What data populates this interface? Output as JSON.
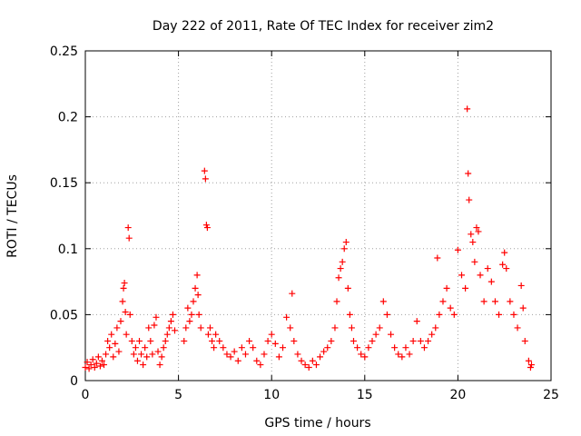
{
  "chart_data": {
    "type": "scatter",
    "title": "Day 222 of 2011, Rate Of TEC Index for receiver zim2",
    "xlabel": "GPS time / hours",
    "ylabel": "ROTI / TECUs",
    "xlim": [
      0,
      25
    ],
    "ylim": [
      0,
      0.25
    ],
    "xticks": [
      "0",
      "5",
      "10",
      "15",
      "20",
      "25"
    ],
    "yticks": [
      "0",
      "0.05",
      "0.1",
      "0.15",
      "0.2",
      "0.25"
    ],
    "grid": true,
    "marker": "+",
    "color": "#ff0000",
    "points": [
      [
        0.0,
        0.01
      ],
      [
        0.1,
        0.014
      ],
      [
        0.2,
        0.009
      ],
      [
        0.3,
        0.012
      ],
      [
        0.4,
        0.016
      ],
      [
        0.5,
        0.01
      ],
      [
        0.6,
        0.013
      ],
      [
        0.7,
        0.018
      ],
      [
        0.8,
        0.011
      ],
      [
        0.9,
        0.015
      ],
      [
        1.0,
        0.012
      ],
      [
        1.1,
        0.02
      ],
      [
        1.2,
        0.03
      ],
      [
        1.3,
        0.025
      ],
      [
        1.4,
        0.035
      ],
      [
        1.5,
        0.018
      ],
      [
        1.6,
        0.028
      ],
      [
        1.7,
        0.04
      ],
      [
        1.8,
        0.022
      ],
      [
        1.9,
        0.045
      ],
      [
        2.0,
        0.06
      ],
      [
        2.05,
        0.07
      ],
      [
        2.1,
        0.074
      ],
      [
        2.15,
        0.052
      ],
      [
        2.2,
        0.035
      ],
      [
        2.3,
        0.116
      ],
      [
        2.35,
        0.108
      ],
      [
        2.4,
        0.05
      ],
      [
        2.5,
        0.03
      ],
      [
        2.6,
        0.02
      ],
      [
        2.7,
        0.025
      ],
      [
        2.8,
        0.015
      ],
      [
        2.9,
        0.03
      ],
      [
        3.0,
        0.02
      ],
      [
        3.1,
        0.012
      ],
      [
        3.2,
        0.025
      ],
      [
        3.3,
        0.018
      ],
      [
        3.4,
        0.04
      ],
      [
        3.5,
        0.03
      ],
      [
        3.6,
        0.02
      ],
      [
        3.7,
        0.042
      ],
      [
        3.8,
        0.048
      ],
      [
        3.9,
        0.022
      ],
      [
        4.0,
        0.012
      ],
      [
        4.1,
        0.018
      ],
      [
        4.2,
        0.025
      ],
      [
        4.3,
        0.03
      ],
      [
        4.4,
        0.035
      ],
      [
        4.5,
        0.04
      ],
      [
        4.6,
        0.045
      ],
      [
        4.7,
        0.05
      ],
      [
        4.8,
        0.038
      ],
      [
        5.3,
        0.03
      ],
      [
        5.4,
        0.04
      ],
      [
        5.5,
        0.055
      ],
      [
        5.6,
        0.045
      ],
      [
        5.7,
        0.05
      ],
      [
        5.8,
        0.06
      ],
      [
        5.9,
        0.07
      ],
      [
        6.0,
        0.08
      ],
      [
        6.05,
        0.065
      ],
      [
        6.1,
        0.05
      ],
      [
        6.2,
        0.04
      ],
      [
        6.4,
        0.159
      ],
      [
        6.45,
        0.153
      ],
      [
        6.5,
        0.118
      ],
      [
        6.55,
        0.116
      ],
      [
        6.6,
        0.035
      ],
      [
        6.7,
        0.04
      ],
      [
        6.8,
        0.03
      ],
      [
        6.9,
        0.025
      ],
      [
        7.0,
        0.035
      ],
      [
        7.2,
        0.03
      ],
      [
        7.4,
        0.025
      ],
      [
        7.6,
        0.02
      ],
      [
        7.8,
        0.018
      ],
      [
        8.0,
        0.022
      ],
      [
        8.2,
        0.015
      ],
      [
        8.4,
        0.025
      ],
      [
        8.6,
        0.02
      ],
      [
        8.8,
        0.03
      ],
      [
        9.0,
        0.025
      ],
      [
        9.2,
        0.015
      ],
      [
        9.4,
        0.012
      ],
      [
        9.6,
        0.02
      ],
      [
        9.8,
        0.03
      ],
      [
        10.0,
        0.035
      ],
      [
        10.2,
        0.028
      ],
      [
        10.4,
        0.018
      ],
      [
        10.6,
        0.025
      ],
      [
        10.8,
        0.048
      ],
      [
        11.0,
        0.04
      ],
      [
        11.1,
        0.066
      ],
      [
        11.2,
        0.03
      ],
      [
        11.4,
        0.02
      ],
      [
        11.6,
        0.015
      ],
      [
        11.8,
        0.012
      ],
      [
        12.0,
        0.01
      ],
      [
        12.2,
        0.015
      ],
      [
        12.4,
        0.012
      ],
      [
        12.6,
        0.018
      ],
      [
        12.8,
        0.022
      ],
      [
        13.0,
        0.025
      ],
      [
        13.2,
        0.03
      ],
      [
        13.4,
        0.04
      ],
      [
        13.5,
        0.06
      ],
      [
        13.6,
        0.078
      ],
      [
        13.7,
        0.085
      ],
      [
        13.8,
        0.09
      ],
      [
        13.9,
        0.1
      ],
      [
        14.0,
        0.105
      ],
      [
        14.1,
        0.07
      ],
      [
        14.2,
        0.05
      ],
      [
        14.3,
        0.04
      ],
      [
        14.4,
        0.03
      ],
      [
        14.6,
        0.025
      ],
      [
        14.8,
        0.02
      ],
      [
        15.0,
        0.018
      ],
      [
        15.2,
        0.025
      ],
      [
        15.4,
        0.03
      ],
      [
        15.6,
        0.035
      ],
      [
        15.8,
        0.04
      ],
      [
        16.0,
        0.06
      ],
      [
        16.2,
        0.05
      ],
      [
        16.4,
        0.035
      ],
      [
        16.6,
        0.025
      ],
      [
        16.8,
        0.02
      ],
      [
        17.0,
        0.018
      ],
      [
        17.2,
        0.025
      ],
      [
        17.4,
        0.02
      ],
      [
        17.6,
        0.03
      ],
      [
        17.8,
        0.045
      ],
      [
        18.0,
        0.03
      ],
      [
        18.2,
        0.025
      ],
      [
        18.4,
        0.03
      ],
      [
        18.6,
        0.035
      ],
      [
        18.8,
        0.04
      ],
      [
        18.9,
        0.093
      ],
      [
        19.0,
        0.05
      ],
      [
        19.2,
        0.06
      ],
      [
        19.4,
        0.07
      ],
      [
        19.6,
        0.055
      ],
      [
        19.8,
        0.05
      ],
      [
        20.0,
        0.099
      ],
      [
        20.2,
        0.08
      ],
      [
        20.4,
        0.07
      ],
      [
        20.5,
        0.206
      ],
      [
        20.55,
        0.157
      ],
      [
        20.6,
        0.137
      ],
      [
        20.7,
        0.111
      ],
      [
        20.8,
        0.105
      ],
      [
        20.9,
        0.09
      ],
      [
        21.0,
        0.116
      ],
      [
        21.1,
        0.113
      ],
      [
        21.2,
        0.08
      ],
      [
        21.4,
        0.06
      ],
      [
        21.6,
        0.085
      ],
      [
        21.8,
        0.075
      ],
      [
        22.0,
        0.06
      ],
      [
        22.2,
        0.05
      ],
      [
        22.4,
        0.088
      ],
      [
        22.5,
        0.097
      ],
      [
        22.6,
        0.085
      ],
      [
        22.8,
        0.06
      ],
      [
        23.0,
        0.05
      ],
      [
        23.2,
        0.04
      ],
      [
        23.4,
        0.072
      ],
      [
        23.5,
        0.055
      ],
      [
        23.6,
        0.03
      ],
      [
        23.8,
        0.015
      ],
      [
        23.9,
        0.01
      ],
      [
        23.95,
        0.012
      ]
    ]
  }
}
